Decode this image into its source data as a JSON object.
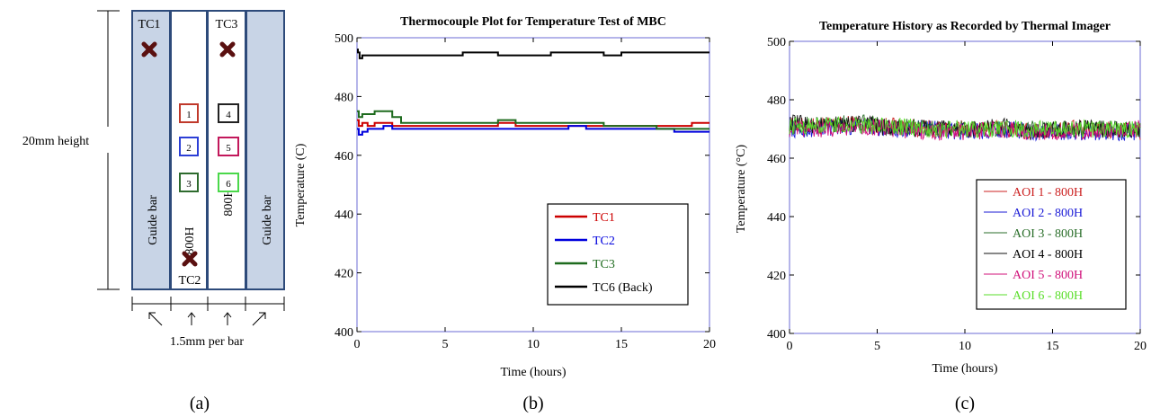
{
  "panels": {
    "a": "(a)",
    "b": "(b)",
    "c": "(c)"
  },
  "schematic": {
    "height_label": "20mm height",
    "width_label": "1.5mm per bar",
    "guide_bar_label": "Guide bar",
    "specimen_label": "800H",
    "thermocouples": [
      "TC1",
      "TC2",
      "TC3"
    ],
    "aoi_boxes": [
      {
        "label": "1",
        "color": "#c0392b"
      },
      {
        "label": "2",
        "color": "#2c3fd6"
      },
      {
        "label": "3",
        "color": "#2e6b2e"
      },
      {
        "label": "4",
        "color": "#222222"
      },
      {
        "label": "5",
        "color": "#c2185b"
      },
      {
        "label": "6",
        "color": "#4bd84b"
      }
    ],
    "colors": {
      "guide_fill": "#c8d4e6",
      "guide_stroke": "#2d4a7a",
      "marker": "#5a1010"
    }
  },
  "chart_data": [
    {
      "type": "line",
      "title": "Thermocouple Plot for Temperature Test of MBC",
      "xlabel": "Time (hours)",
      "ylabel": "Temperature (C)",
      "xlim": [
        0,
        20
      ],
      "ylim": [
        400,
        500
      ],
      "xticks": [
        0,
        5,
        10,
        15,
        20
      ],
      "yticks": [
        400,
        420,
        440,
        460,
        480,
        500
      ],
      "legend_position": "lower-right",
      "series": [
        {
          "name": "TC1",
          "color": "#cc0000",
          "x": [
            0,
            0.1,
            0.3,
            0.6,
            1.0,
            1.5,
            2.0,
            2.5,
            3.0,
            4.0,
            5.0,
            6.0,
            7.0,
            8.0,
            9.0,
            10.0,
            11.0,
            12.0,
            13.0,
            14.0,
            15.0,
            16.0,
            17.0,
            18.0,
            19.0,
            20.0
          ],
          "y": [
            472,
            470,
            471,
            470,
            471,
            471,
            470,
            470,
            470,
            470,
            470,
            470,
            470,
            471,
            470,
            470,
            470,
            470,
            470,
            470,
            470,
            470,
            470,
            470,
            471,
            471
          ]
        },
        {
          "name": "TC2",
          "color": "#0000dd",
          "x": [
            0,
            0.1,
            0.3,
            0.6,
            1.0,
            1.5,
            2.0,
            2.5,
            3.0,
            4.0,
            5.0,
            6.0,
            7.0,
            8.0,
            9.0,
            10.0,
            11.0,
            12.0,
            13.0,
            14.0,
            15.0,
            16.0,
            17.0,
            18.0,
            19.0,
            20.0
          ],
          "y": [
            469,
            467,
            468,
            469,
            469,
            470,
            469,
            469,
            469,
            469,
            469,
            469,
            469,
            469,
            469,
            469,
            469,
            470,
            469,
            469,
            469,
            469,
            469,
            468,
            468,
            468
          ]
        },
        {
          "name": "TC3",
          "color": "#1e6b1e",
          "x": [
            0,
            0.1,
            0.3,
            0.6,
            1.0,
            1.5,
            2.0,
            2.5,
            3.0,
            4.0,
            5.0,
            6.0,
            7.0,
            8.0,
            9.0,
            10.0,
            11.0,
            12.0,
            13.0,
            14.0,
            15.0,
            16.0,
            17.0,
            18.0,
            19.0,
            20.0
          ],
          "y": [
            475,
            473,
            474,
            474,
            475,
            475,
            473,
            471,
            471,
            471,
            471,
            471,
            471,
            472,
            471,
            471,
            471,
            471,
            471,
            470,
            470,
            470,
            469,
            469,
            469,
            469
          ]
        },
        {
          "name": "TC6 (Back)",
          "color": "#000000",
          "x": [
            0,
            0.05,
            0.15,
            0.3,
            0.5,
            1.0,
            2.0,
            3.0,
            4.0,
            5.0,
            6.0,
            7.0,
            8.0,
            9.0,
            10.0,
            11.0,
            12.0,
            13.0,
            14.0,
            15.0,
            16.0,
            17.0,
            18.0,
            19.0,
            20.0
          ],
          "y": [
            496,
            495,
            493,
            494,
            494,
            494,
            494,
            494,
            494,
            494,
            495,
            495,
            494,
            494,
            494,
            495,
            495,
            495,
            494,
            495,
            495,
            495,
            495,
            495,
            495
          ]
        }
      ]
    },
    {
      "type": "line",
      "title": "Temperature History as Recorded by Thermal Imager",
      "xlabel": "Time (hours)",
      "ylabel": "Temperature (°C)",
      "xlim": [
        0,
        20
      ],
      "ylim": [
        400,
        500
      ],
      "xticks": [
        0,
        5,
        10,
        15,
        20
      ],
      "yticks": [
        400,
        420,
        440,
        460,
        480,
        500
      ],
      "legend_position": "lower-right",
      "noise_amplitude": 3,
      "series": [
        {
          "name": "AOI 1 - 800H",
          "color": "#cc2222",
          "x": [
            0,
            2,
            4,
            6,
            8,
            10,
            12,
            14,
            16,
            18,
            20
          ],
          "y": [
            471,
            471,
            472,
            471,
            470,
            470,
            470,
            469,
            470,
            470,
            469
          ]
        },
        {
          "name": "AOI 2 - 800H",
          "color": "#1a1ad6",
          "x": [
            0,
            2,
            4,
            6,
            8,
            10,
            12,
            14,
            16,
            18,
            20
          ],
          "y": [
            470,
            470,
            471,
            470,
            470,
            469,
            470,
            469,
            469,
            469,
            469
          ]
        },
        {
          "name": "AOI 3 - 800H",
          "color": "#2a6e2a",
          "x": [
            0,
            2,
            4,
            6,
            8,
            10,
            12,
            14,
            16,
            18,
            20
          ],
          "y": [
            471,
            472,
            472,
            471,
            470,
            470,
            470,
            470,
            470,
            470,
            470
          ]
        },
        {
          "name": "AOI 4 - 800H",
          "color": "#111111",
          "x": [
            0,
            2,
            4,
            6,
            8,
            10,
            12,
            14,
            16,
            18,
            20
          ],
          "y": [
            472,
            471,
            472,
            470,
            470,
            470,
            471,
            469,
            470,
            470,
            469
          ]
        },
        {
          "name": "AOI 5 - 800H",
          "color": "#d0107a",
          "x": [
            0,
            2,
            4,
            6,
            8,
            10,
            12,
            14,
            16,
            18,
            20
          ],
          "y": [
            470,
            470,
            471,
            470,
            469,
            469,
            470,
            469,
            469,
            469,
            470
          ]
        },
        {
          "name": "AOI 6 - 800H",
          "color": "#5ade2a",
          "x": [
            0,
            2,
            4,
            6,
            8,
            10,
            12,
            14,
            16,
            18,
            20
          ],
          "y": [
            471,
            471,
            471,
            471,
            470,
            470,
            470,
            470,
            470,
            470,
            470
          ]
        }
      ]
    }
  ]
}
